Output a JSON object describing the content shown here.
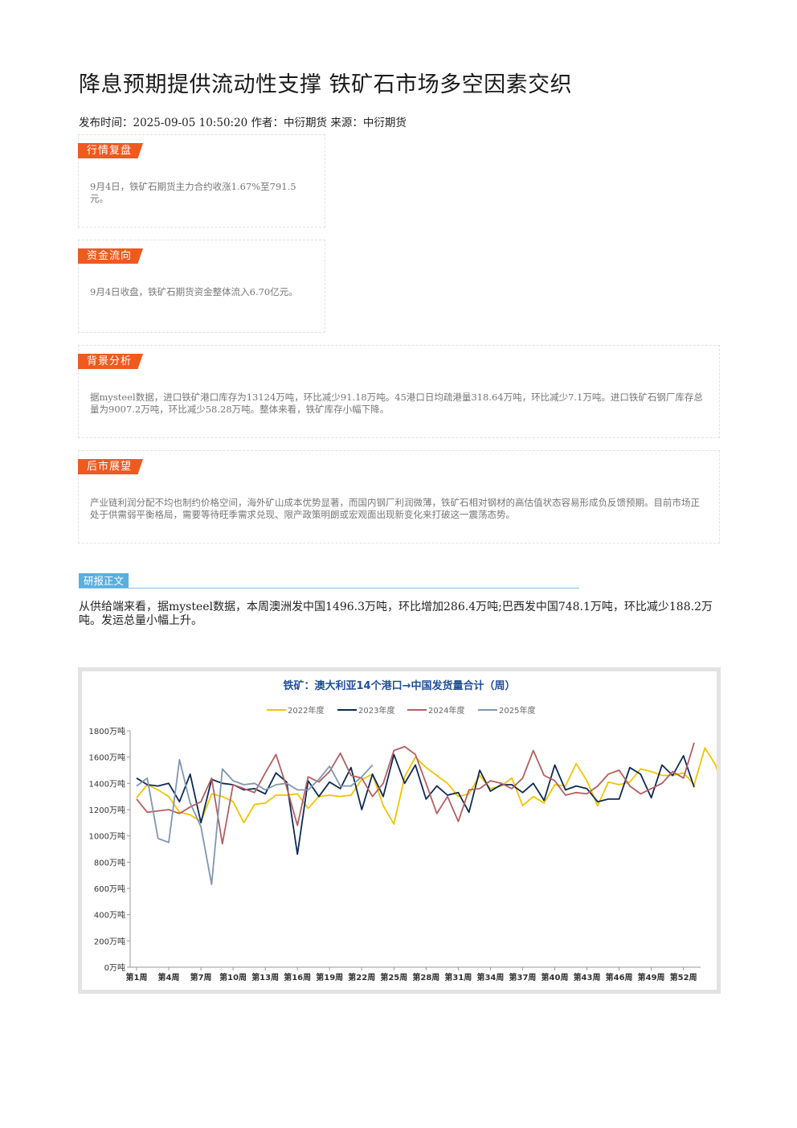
{
  "article": {
    "title": "降息预期提供流动性支撑 铁矿石市场多空因素交织",
    "meta": "发布时间：2025-09-05 10:50:20 作者：中衍期货 来源：中衍期货"
  },
  "sections": {
    "market": {
      "label": "行情复盘",
      "text": "9月4日，铁矿石期货主力合约收涨1.67%至791.5元。"
    },
    "funds": {
      "label": "资金流向",
      "text": "9月4日收盘，铁矿石期货资金整体流入6.70亿元。"
    },
    "background": {
      "label": "背景分析",
      "text": "据mysteel数据，进口铁矿港口库存为13124万吨，环比减少91.18万吨。45港口日均疏港量318.64万吨，环比减少7.1万吨。进口铁矿石钢厂库存总量为9007.2万吨，环比减少58.28万吨。整体来看，铁矿库存小幅下降。"
    },
    "outlook": {
      "label": "后市展望",
      "text": "产业链利润分配不均也制约价格空间，海外矿山成本优势显著，而国内钢厂利润微薄，铁矿石相对钢材的高估值状态容易形成负反馈预期。目前市场正处于供需弱平衡格局，需要等待旺季需求兑现、限产政策明朗或宏观面出现新变化来打破这一震荡态势。"
    }
  },
  "report": {
    "label": "研报正文",
    "text": "从供给端来看，据mysteel数据，本周澳洲发中国1496.3万吨，环比增加286.4万吨;巴西发中国748.1万吨，环比减少188.2万吨。发运总量小幅上升。"
  },
  "chart_data": {
    "type": "line",
    "title": "铁矿：澳大利亚14个港口→中国发货量合计（周）",
    "legend_position": "top",
    "ylim": [
      0,
      1800
    ],
    "yticks": [
      "0万吨",
      "200万吨",
      "400万吨",
      "600万吨",
      "800万吨",
      "1000万吨",
      "1200万吨",
      "1400万吨",
      "1600万吨",
      "1800万吨"
    ],
    "xticks": [
      "第1周",
      "第4周",
      "第7周",
      "第10周",
      "第13周",
      "第16周",
      "第19周",
      "第22周",
      "第25周",
      "第28周",
      "第31周",
      "第34周",
      "第37周",
      "第40周",
      "第43周",
      "第46周",
      "第49周",
      "第52周"
    ],
    "series": [
      {
        "name": "2022年度",
        "color": "#f2c400",
        "values": [
          1290,
          1390,
          1350,
          1300,
          1180,
          1160,
          1110,
          1320,
          1300,
          1260,
          1100,
          1240,
          1250,
          1310,
          1310,
          1320,
          1210,
          1300,
          1310,
          1300,
          1310,
          1430,
          1470,
          1230,
          1090,
          1450,
          1600,
          1520,
          1460,
          1400,
          1300,
          1320,
          1460,
          1360,
          1380,
          1440,
          1230,
          1300,
          1250,
          1390,
          1380,
          1550,
          1420,
          1230,
          1410,
          1390,
          1410,
          1510,
          1490,
          1460,
          1460,
          1480,
          1390,
          1670,
          1540,
          1270
        ]
      },
      {
        "name": "2023年度",
        "color": "#0d2b55",
        "values": [
          1440,
          1390,
          1380,
          1400,
          1260,
          1470,
          1100,
          1430,
          1400,
          1390,
          1350,
          1360,
          1320,
          1480,
          1410,
          860,
          1420,
          1300,
          1410,
          1360,
          1520,
          1200,
          1470,
          1300,
          1620,
          1400,
          1540,
          1280,
          1380,
          1310,
          1330,
          1180,
          1500,
          1340,
          1390,
          1390,
          1330,
          1400,
          1270,
          1540,
          1350,
          1380,
          1360,
          1260,
          1280,
          1280,
          1520,
          1470,
          1290,
          1540,
          1460,
          1610,
          1370
        ]
      },
      {
        "name": "2024年度",
        "color": "#b3605f",
        "values": [
          1280,
          1180,
          1190,
          1200,
          1170,
          1220,
          1260,
          1440,
          940,
          1390,
          1360,
          1330,
          1480,
          1620,
          1370,
          1080,
          1450,
          1410,
          1490,
          1630,
          1460,
          1440,
          1300,
          1400,
          1650,
          1680,
          1620,
          1400,
          1170,
          1300,
          1110,
          1350,
          1360,
          1420,
          1400,
          1360,
          1440,
          1650,
          1460,
          1420,
          1310,
          1330,
          1320,
          1380,
          1470,
          1500,
          1380,
          1320,
          1360,
          1400,
          1490,
          1440,
          1710
        ]
      },
      {
        "name": "2025年度",
        "color": "#8096b2",
        "values": [
          1380,
          1440,
          980,
          950,
          1580,
          1250,
          1070,
          630,
          1510,
          1420,
          1390,
          1400,
          1350,
          1390,
          1400,
          1350,
          1350,
          1430,
          1530,
          1380,
          1380,
          1450,
          1540
        ]
      }
    ]
  }
}
